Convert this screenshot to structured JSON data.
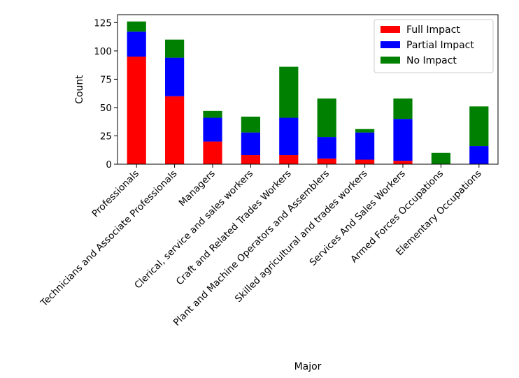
{
  "chart_data": {
    "type": "bar",
    "stacked": true,
    "xlabel": "Major",
    "ylabel": "Count",
    "ylim": [
      0,
      132
    ],
    "yticks": [
      0,
      25,
      50,
      75,
      100,
      125
    ],
    "categories": [
      "Professionals",
      "Technicians and Associate Professionals",
      "Managers",
      "Clerical, service and sales workers",
      "Craft and Related Trades Workers",
      "Plant and Machine Operators and Assemblers",
      "Skilled agricultural and trades workers",
      "Services And Sales Workers",
      "Armed Forces Occupations",
      "Elementary Occupations"
    ],
    "series": [
      {
        "name": "Full Impact",
        "color": "#ff0000",
        "values": [
          95,
          60,
          20,
          8,
          8,
          5,
          4,
          3,
          0,
          0
        ]
      },
      {
        "name": "Partial Impact",
        "color": "#0000ff",
        "values": [
          22,
          34,
          21,
          20,
          33,
          19,
          24,
          37,
          0,
          16
        ]
      },
      {
        "name": "No Impact",
        "color": "#008000",
        "values": [
          9,
          16,
          6,
          14,
          45,
          34,
          3,
          18,
          10,
          35
        ]
      }
    ],
    "legend_position": "top-right",
    "grid": false
  }
}
